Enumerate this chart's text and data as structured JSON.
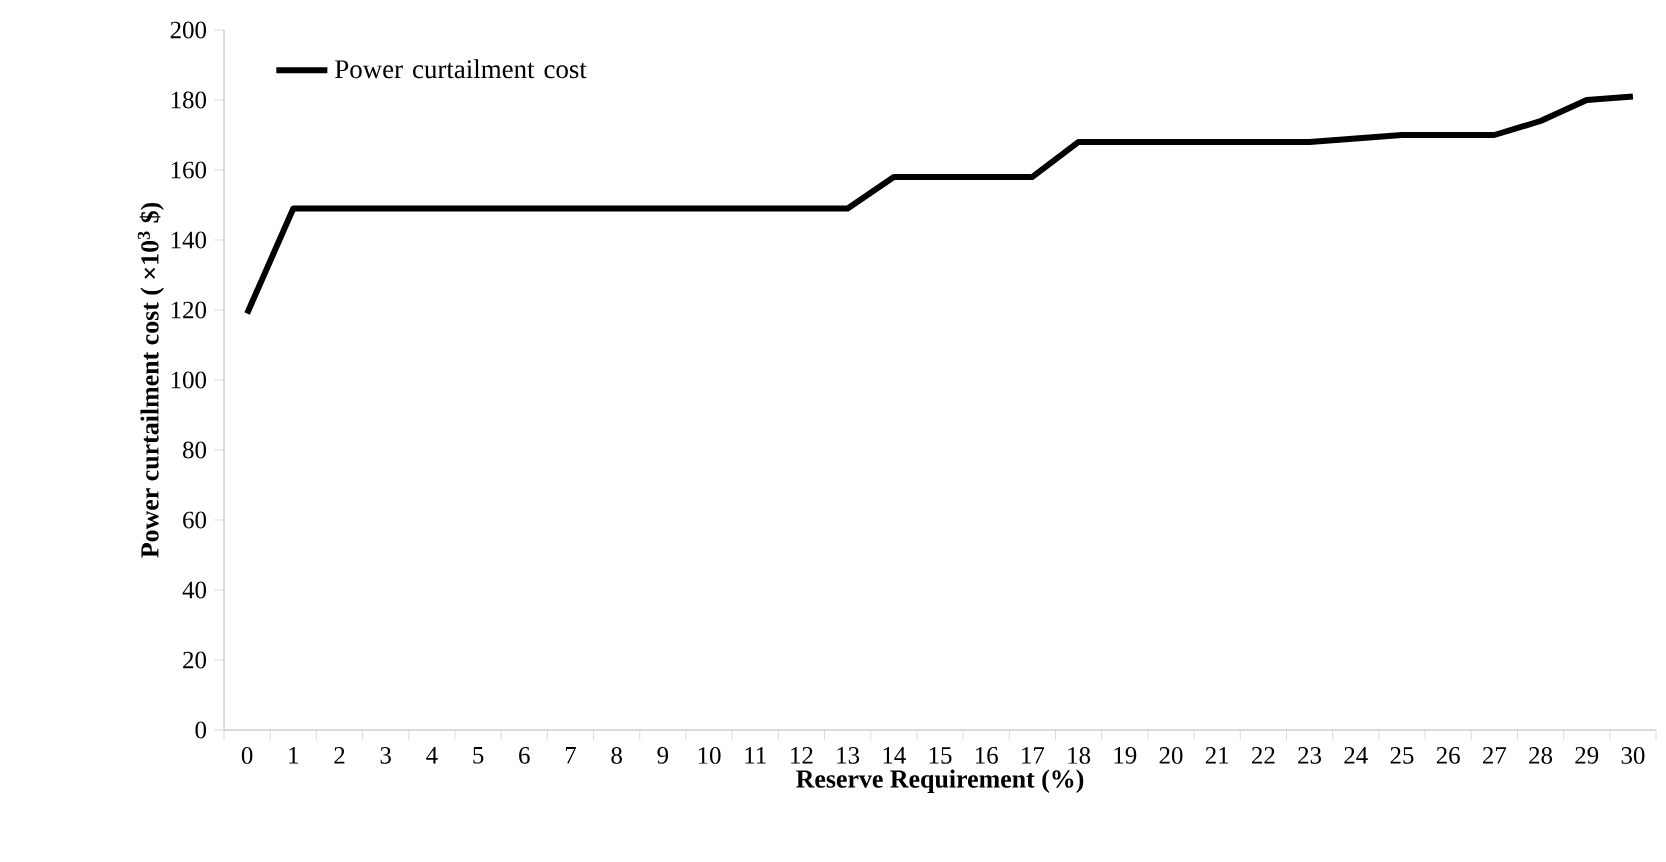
{
  "chart_data": {
    "type": "line",
    "categories": [
      "0",
      "1",
      "2",
      "3",
      "4",
      "5",
      "6",
      "7",
      "8",
      "9",
      "10",
      "11",
      "12",
      "13",
      "14",
      "15",
      "16",
      "17",
      "18",
      "19",
      "20",
      "21",
      "22",
      "23",
      "24",
      "25",
      "26",
      "27",
      "28",
      "29",
      "30"
    ],
    "series": [
      {
        "name": "Power curtailment cost",
        "color": "#000000",
        "values": [
          119,
          149,
          149,
          149,
          149,
          149,
          149,
          149,
          149,
          149,
          149,
          149,
          149,
          149,
          158,
          158,
          158,
          158,
          168,
          168,
          168,
          168,
          168,
          168,
          169,
          170,
          170,
          170,
          174,
          180,
          181
        ]
      }
    ],
    "xlabel": "Reserve Requirement (%)",
    "ylabel": "Power curtailment cost ( ×10$^{3}$ $)",
    "ylim": [
      0,
      200
    ],
    "yticks": [
      0,
      20,
      40,
      60,
      80,
      100,
      120,
      140,
      160,
      180,
      200
    ],
    "grid": false,
    "legend": "top left",
    "marker": "none",
    "line_style": "solid"
  }
}
